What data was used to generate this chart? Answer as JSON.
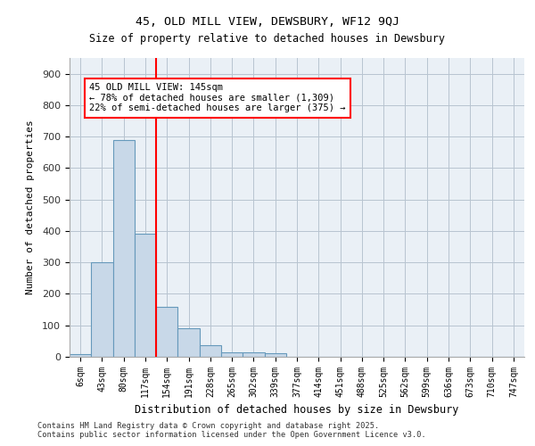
{
  "title1": "45, OLD MILL VIEW, DEWSBURY, WF12 9QJ",
  "title2": "Size of property relative to detached houses in Dewsbury",
  "xlabel": "Distribution of detached houses by size in Dewsbury",
  "ylabel": "Number of detached properties",
  "footer": "Contains HM Land Registry data © Crown copyright and database right 2025.\nContains public sector information licensed under the Open Government Licence v3.0.",
  "bin_labels": [
    "6sqm",
    "43sqm",
    "80sqm",
    "117sqm",
    "154sqm",
    "191sqm",
    "228sqm",
    "265sqm",
    "302sqm",
    "339sqm",
    "377sqm",
    "414sqm",
    "451sqm",
    "488sqm",
    "525sqm",
    "562sqm",
    "599sqm",
    "636sqm",
    "673sqm",
    "710sqm",
    "747sqm"
  ],
  "bar_values": [
    8,
    300,
    690,
    390,
    160,
    90,
    37,
    15,
    15,
    10,
    0,
    0,
    0,
    0,
    0,
    0,
    0,
    0,
    0,
    0,
    0
  ],
  "bar_color": "#c8d8e8",
  "bar_edge_color": "#6699bb",
  "vline_pos": 3.5,
  "vline_color": "red",
  "annotation_text": "45 OLD MILL VIEW: 145sqm\n← 78% of detached houses are smaller (1,309)\n22% of semi-detached houses are larger (375) →",
  "ylim": [
    0,
    950
  ],
  "yticks": [
    0,
    100,
    200,
    300,
    400,
    500,
    600,
    700,
    800,
    900
  ],
  "plot_bg_color": "#eaf0f6"
}
